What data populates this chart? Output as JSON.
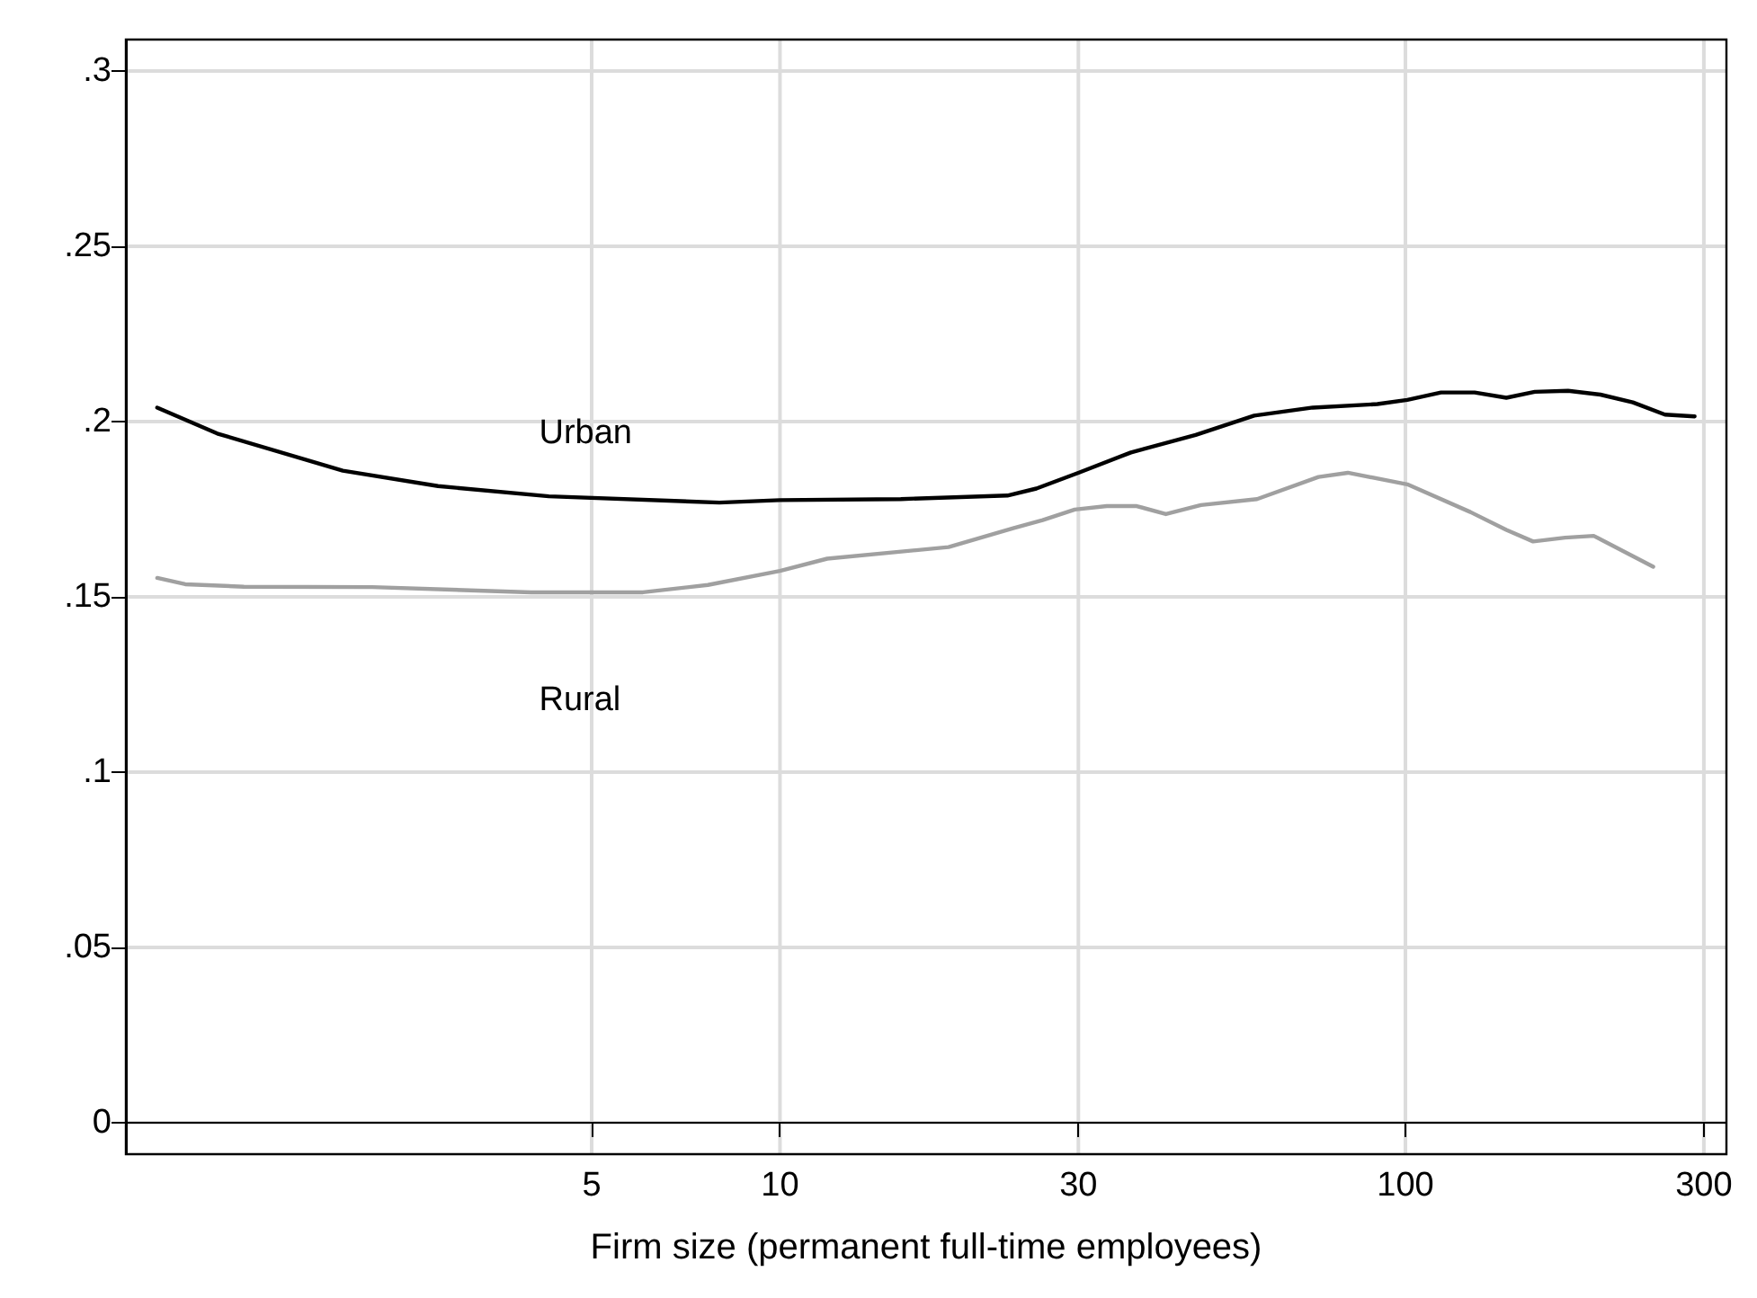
{
  "chart_data": {
    "type": "line",
    "xlabel": "Firm size (permanent full-time employees)",
    "log": "x",
    "xlim": [
      0.9,
      326
    ],
    "xticks": [
      5,
      10,
      30,
      100,
      300
    ],
    "ylim": [
      -0.009,
      0.309
    ],
    "yticks": [
      0,
      {
        "value": 0.05,
        "label": ".05"
      },
      {
        "value": 0.1,
        "label": ".1"
      },
      {
        "value": 0.15,
        "label": ".15"
      },
      {
        "value": 0.2,
        "label": ".2"
      },
      {
        "value": 0.25,
        "label": ".25"
      },
      {
        "value": 0.3,
        "label": ".3"
      }
    ],
    "grid": true,
    "legend": false,
    "marker": "none",
    "line_style": "solid",
    "series": [
      {
        "name": "Urban",
        "color": "#000000",
        "x": [
          1.01,
          1.26,
          2.0,
          2.84,
          4.27,
          8.0,
          10,
          15.6,
          23.1,
          25.7,
          30,
          36.4,
          46.2,
          57.3,
          71.1,
          90.2,
          100.7,
          114,
          129,
          145,
          161,
          182,
          205,
          231,
          260,
          290
        ],
        "values": [
          0.204,
          0.1966,
          0.186,
          0.1816,
          0.1787,
          0.1769,
          0.1776,
          0.1779,
          0.1789,
          0.1809,
          0.1854,
          0.1912,
          0.1962,
          0.2017,
          0.204,
          0.205,
          0.2062,
          0.2083,
          0.2083,
          0.2068,
          0.2085,
          0.2088,
          0.2077,
          0.2055,
          0.202,
          0.2015
        ]
      },
      {
        "name": "Rural",
        "color": "#a0a0a0",
        "x": [
          1.01,
          1.12,
          1.39,
          2.23,
          4.0,
          6.04,
          7.67,
          10,
          11.9,
          18.6,
          23.6,
          26.3,
          29.6,
          33.3,
          37.2,
          41.4,
          47.1,
          57.9,
          72.6,
          80.9,
          100.7,
          127,
          145,
          160,
          180,
          200,
          249
        ],
        "values": [
          0.1554,
          0.1536,
          0.1529,
          0.1528,
          0.1513,
          0.1513,
          0.1534,
          0.1574,
          0.1609,
          0.1642,
          0.1696,
          0.1719,
          0.1749,
          0.1759,
          0.1759,
          0.1736,
          0.1762,
          0.1779,
          0.1842,
          0.1854,
          0.1821,
          0.1742,
          0.1691,
          0.1658,
          0.1669,
          0.1674,
          0.1586
        ]
      }
    ]
  }
}
